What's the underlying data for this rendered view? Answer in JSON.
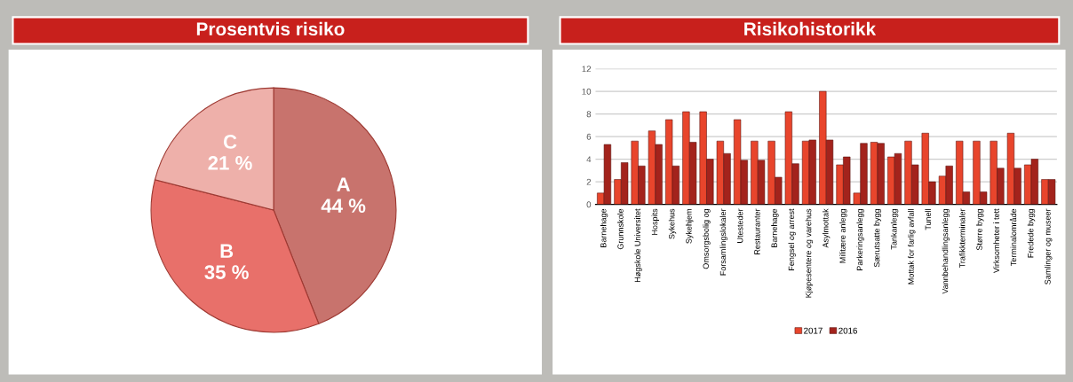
{
  "chart_data": [
    {
      "type": "pie",
      "title": "Prosentvis risiko",
      "categories": [
        "A",
        "B",
        "C"
      ],
      "values": [
        44,
        35,
        21
      ],
      "value_labels": [
        "44 %",
        "35 %",
        "21 %"
      ],
      "colors": [
        "#c8736d",
        "#e8706a",
        "#eeb0aa"
      ]
    },
    {
      "type": "bar",
      "title": "Risikohistorikk",
      "categories": [
        "Barnehage",
        "Grunnskole",
        "Høgskole Universitet",
        "Hospits",
        "Sykehus",
        "Sykehjem",
        "Omsorgsbolig og",
        "Forsamlingslokaler",
        "Utesteder",
        "Restauranter",
        "Barnehage",
        "Fengsel og arrest",
        "Kjøpesentere og varehus",
        "Asylmottak",
        "Militære anlegg",
        "Parkeringsanlegg",
        "Særutsatte bygg",
        "Tankanlegg",
        "Mottak for farlig avfall",
        "Tunell",
        "Vannbehandlingsanlegg",
        "Trafikkterminaler",
        "Større bygg",
        "Virksomheter i tett",
        "Terminalområde",
        "Fredede bygg",
        "Samlinger og museer"
      ],
      "series": [
        {
          "name": "2017",
          "color": "#e8452c",
          "values": [
            1.0,
            2.2,
            5.6,
            6.5,
            7.5,
            8.2,
            8.2,
            5.6,
            7.5,
            5.6,
            5.6,
            8.2,
            5.6,
            10.0,
            3.5,
            1.0,
            5.5,
            4.2,
            5.6,
            6.3,
            2.5,
            5.6,
            5.6,
            5.6,
            6.3,
            3.5,
            2.2
          ]
        },
        {
          "name": "2016",
          "color": "#a3231c",
          "values": [
            5.3,
            3.7,
            3.4,
            5.3,
            3.4,
            5.5,
            4.0,
            4.5,
            3.9,
            3.9,
            2.4,
            3.6,
            5.7,
            5.7,
            4.2,
            5.4,
            5.4,
            4.5,
            3.5,
            2.0,
            3.4,
            1.1,
            1.1,
            3.2,
            3.2,
            4.0,
            2.2
          ]
        }
      ],
      "ylim": [
        0,
        12
      ],
      "yticks": [
        0,
        2,
        4,
        6,
        8,
        10,
        12
      ],
      "grid": "y",
      "legend": "bottom"
    }
  ]
}
